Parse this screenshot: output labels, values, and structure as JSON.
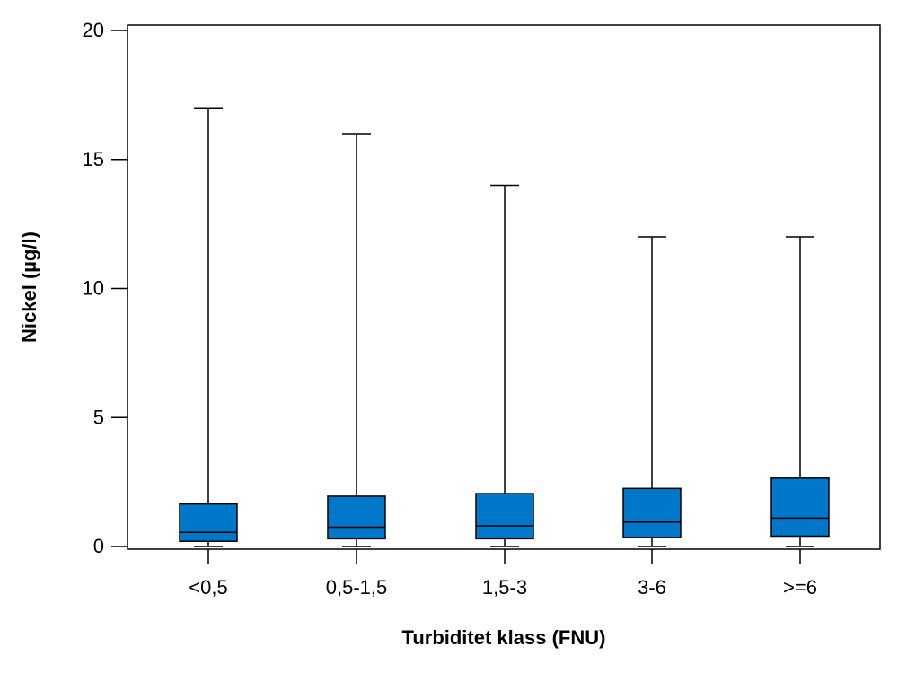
{
  "chart_data": {
    "type": "boxplot",
    "xlabel": "Turbiditet klass (FNU)",
    "ylabel": "Nickel (µg/l)",
    "ylim": [
      0,
      20
    ],
    "yticks": [
      0,
      5,
      10,
      15,
      20
    ],
    "grid": false,
    "box_color": "#0077c8",
    "categories": [
      "<0,5",
      "0,5-1,5",
      "1,5-3",
      "3-6",
      ">=6"
    ],
    "boxes": [
      {
        "category": "<0,5",
        "whisker_low": 0,
        "q1": 0.2,
        "median": 0.55,
        "q3": 1.65,
        "whisker_high": 17
      },
      {
        "category": "0,5-1,5",
        "whisker_low": 0,
        "q1": 0.3,
        "median": 0.75,
        "q3": 1.95,
        "whisker_high": 16
      },
      {
        "category": "1,5-3",
        "whisker_low": 0,
        "q1": 0.3,
        "median": 0.8,
        "q3": 2.05,
        "whisker_high": 14
      },
      {
        "category": "3-6",
        "whisker_low": 0,
        "q1": 0.35,
        "median": 0.95,
        "q3": 2.25,
        "whisker_high": 12
      },
      {
        "category": ">=6",
        "whisker_low": 0,
        "q1": 0.4,
        "median": 1.1,
        "q3": 2.65,
        "whisker_high": 12
      }
    ]
  }
}
